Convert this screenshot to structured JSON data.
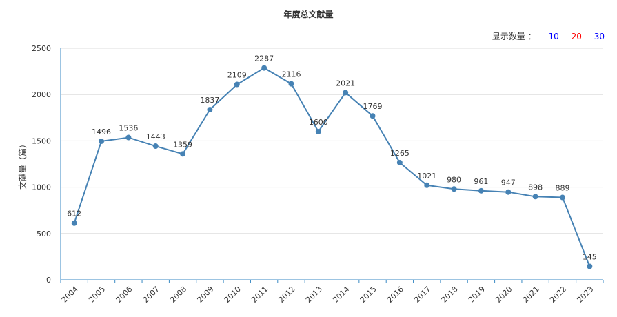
{
  "chart_data": {
    "type": "line",
    "title": "年度总文献量",
    "xlabel": "",
    "ylabel": "文献量（篇）",
    "categories": [
      "2004",
      "2005",
      "2006",
      "2007",
      "2008",
      "2009",
      "2010",
      "2011",
      "2012",
      "2013",
      "2014",
      "2015",
      "2016",
      "2017",
      "2018",
      "2019",
      "2020",
      "2021",
      "2022",
      "2023"
    ],
    "values": [
      612,
      1496,
      1536,
      1443,
      1359,
      1837,
      2109,
      2287,
      2116,
      1600,
      2021,
      1769,
      1265,
      1021,
      980,
      961,
      947,
      898,
      889,
      145
    ],
    "ylim": [
      0,
      2500
    ],
    "yticks": [
      "0",
      "500",
      "1000",
      "1500",
      "2000",
      "2500"
    ],
    "grid": true,
    "color": "#4682b4"
  },
  "controls": {
    "display_count_label": "显示数量 ：",
    "options": [
      {
        "label": "10",
        "color": "#0000ff"
      },
      {
        "label": "20",
        "color": "#ff0000"
      },
      {
        "label": "30",
        "color": "#0000ff"
      }
    ]
  }
}
